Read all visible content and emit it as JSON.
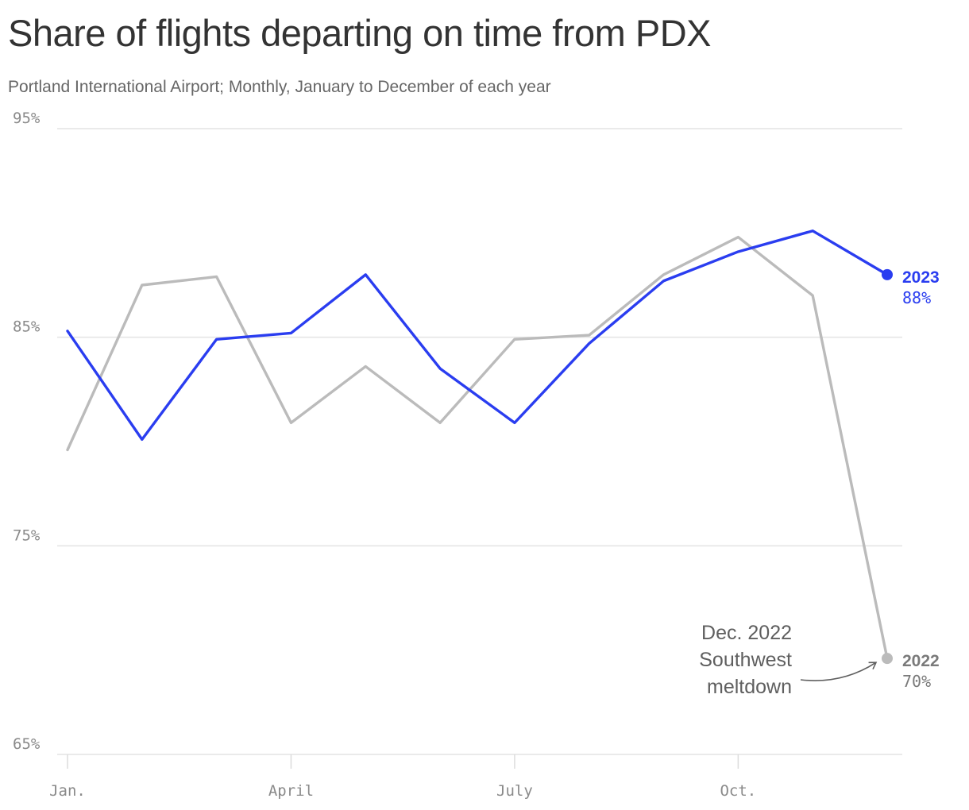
{
  "chart_data": {
    "type": "line",
    "title": "Share of flights departing on time from PDX",
    "subtitle": "Portland International Airport; Monthly, January to December of each year",
    "x": [
      1,
      2,
      3,
      4,
      5,
      6,
      7,
      8,
      9,
      10,
      11,
      12
    ],
    "x_ticks": [
      {
        "month": 1,
        "label": "Jan."
      },
      {
        "month": 4,
        "label": "April"
      },
      {
        "month": 7,
        "label": "July"
      },
      {
        "month": 10,
        "label": "Oct."
      }
    ],
    "y_ticks": [
      {
        "value": 95,
        "label": "95%"
      },
      {
        "value": 85,
        "label": "85%"
      },
      {
        "value": 75,
        "label": "75%"
      },
      {
        "value": 65,
        "label": "65%"
      }
    ],
    "ylim": [
      65,
      95
    ],
    "grid": true,
    "series": [
      {
        "name": "2022",
        "color": "#bbbbbb",
        "values": [
          79.6,
          87.5,
          87.9,
          80.9,
          83.6,
          80.9,
          84.9,
          85.1,
          88.0,
          89.8,
          87.0,
          69.6
        ],
        "end_label": "2022",
        "end_value_label": "70%"
      },
      {
        "name": "2023",
        "color": "#2a3df0",
        "values": [
          85.3,
          80.1,
          84.9,
          85.2,
          88.0,
          83.5,
          80.9,
          84.7,
          87.7,
          89.1,
          90.1,
          88.0
        ],
        "end_label": "2023",
        "end_value_label": "88%"
      }
    ],
    "annotations": [
      {
        "lines": [
          "Dec. 2022",
          "Southwest",
          "meltdown"
        ],
        "points_to": {
          "series": "2022",
          "month": 12
        }
      }
    ]
  }
}
